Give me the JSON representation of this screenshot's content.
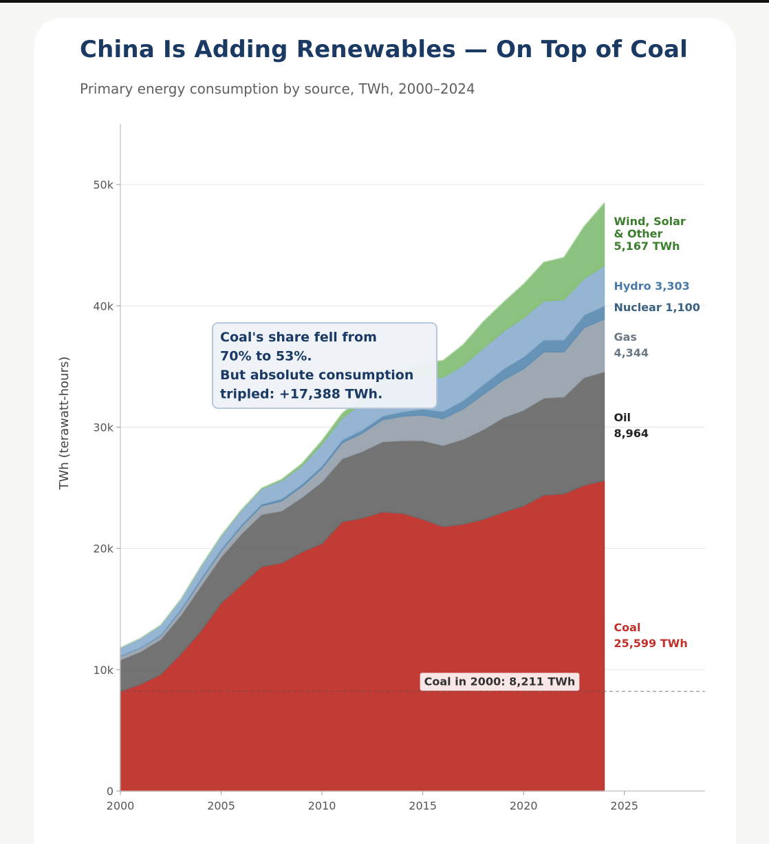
{
  "chart_data": {
    "type": "area",
    "stacked": true,
    "title": "China Is Adding Renewables — On Top of Coal",
    "subtitle": "Primary energy consumption by source, TWh, 2000–2024",
    "ylabel": "TWh (terawatt-hours)",
    "xlabel": "",
    "xlim": [
      2000,
      2029
    ],
    "ylim": [
      0,
      55000
    ],
    "x_ticks": [
      2000,
      2005,
      2010,
      2015,
      2020,
      2025
    ],
    "x_tick_labels": [
      "2000",
      "2005",
      "2010",
      "2015",
      "2020",
      "2025"
    ],
    "y_ticks": [
      0,
      10000,
      20000,
      30000,
      40000,
      50000
    ],
    "y_tick_labels": [
      "0",
      "10k",
      "20k",
      "30k",
      "40k",
      "50k"
    ],
    "grid": "horizontal",
    "x": [
      2000,
      2001,
      2002,
      2003,
      2004,
      2005,
      2006,
      2007,
      2008,
      2009,
      2010,
      2011,
      2012,
      2013,
      2014,
      2015,
      2016,
      2017,
      2018,
      2019,
      2020,
      2021,
      2022,
      2023,
      2024
    ],
    "series": [
      {
        "name": "Coal",
        "color": "#c0302a",
        "values": [
          8211,
          8800,
          9600,
          11300,
          13200,
          15500,
          17000,
          18500,
          18800,
          19700,
          20400,
          22200,
          22500,
          23000,
          22900,
          22400,
          21800,
          22000,
          22400,
          23000,
          23500,
          24400,
          24500,
          25200,
          25599
        ]
      },
      {
        "name": "Oil",
        "color": "#6b6b6b",
        "values": [
          2600,
          2700,
          2900,
          3200,
          3700,
          3800,
          4200,
          4300,
          4300,
          4500,
          5100,
          5200,
          5500,
          5800,
          6000,
          6500,
          6700,
          7000,
          7400,
          7800,
          7900,
          8000,
          8000,
          8900,
          8964
        ]
      },
      {
        "name": "Gas",
        "color": "#98a3ae",
        "values": [
          300,
          300,
          300,
          400,
          500,
          500,
          600,
          700,
          800,
          900,
          1100,
          1300,
          1500,
          1800,
          2000,
          2100,
          2200,
          2500,
          2900,
          3100,
          3400,
          3800,
          3700,
          4100,
          4344
        ]
      },
      {
        "name": "Nuclear",
        "color": "#5f8db3",
        "values": [
          50,
          50,
          80,
          120,
          140,
          150,
          150,
          160,
          200,
          200,
          210,
          250,
          280,
          320,
          380,
          500,
          600,
          700,
          800,
          900,
          1000,
          1000,
          1000,
          1050,
          1100
        ]
      },
      {
        "name": "Hydro",
        "color": "#8fb1d0",
        "values": [
          650,
          750,
          800,
          800,
          1000,
          1100,
          1200,
          1250,
          1500,
          1500,
          1800,
          1800,
          2200,
          2300,
          2600,
          2700,
          2800,
          2900,
          3000,
          3100,
          3200,
          3200,
          3300,
          3000,
          3303
        ]
      },
      {
        "name": "Wind, Solar & Other",
        "color": "#86bf78",
        "values": [
          0,
          0,
          0,
          0,
          10,
          20,
          30,
          60,
          100,
          200,
          300,
          400,
          500,
          700,
          900,
          1100,
          1400,
          1700,
          2200,
          2400,
          2800,
          3200,
          3500,
          4300,
          5167
        ]
      }
    ],
    "end_labels": [
      {
        "series": "Wind, Solar & Other",
        "lines": [
          "Wind, Solar",
          "& Other",
          "5,167 TWh"
        ],
        "color": "#3a7d2c"
      },
      {
        "series": "Hydro",
        "lines": [
          "Hydro 3,303"
        ],
        "color": "#4a79a6"
      },
      {
        "series": "Nuclear",
        "lines": [
          "Nuclear 1,100"
        ],
        "color": "#3b6283"
      },
      {
        "series": "Gas",
        "lines": [
          "Gas",
          "4,344"
        ],
        "color": "#6c7784"
      },
      {
        "series": "Oil",
        "lines": [
          "Oil",
          "8,964"
        ],
        "color": "#222222"
      },
      {
        "series": "Coal",
        "lines": [
          "Coal",
          "25,599 TWh"
        ],
        "color": "#c0302a"
      }
    ],
    "annotations": [
      {
        "kind": "callout",
        "lines": [
          "Coal's share fell from",
          "70% to 53%.",
          "But absolute consumption",
          "tripled: +17,388 TWh."
        ],
        "anchor": {
          "x": 2005,
          "y": 35000
        }
      },
      {
        "kind": "reference_line",
        "y": 8211,
        "text": "Coal in 2000: 8,211 TWh",
        "anchor": {
          "x": 2015,
          "y": 8211
        }
      }
    ]
  }
}
